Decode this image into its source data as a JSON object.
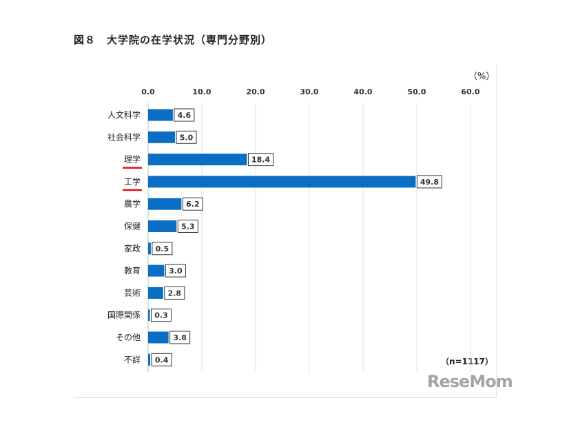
{
  "chart_data": {
    "type": "bar",
    "orientation": "horizontal",
    "title": "図８　大学院の在学状況（専門分野別）",
    "unit_label": "（%）",
    "note": "（n=1117）",
    "categories": [
      "人文科学",
      "社会科学",
      "理学",
      "工学",
      "農学",
      "保健",
      "家政",
      "教育",
      "芸術",
      "国際関係",
      "その他",
      "不詳"
    ],
    "values": [
      4.6,
      5.0,
      18.4,
      49.8,
      6.2,
      5.3,
      0.5,
      3.0,
      2.8,
      0.3,
      3.8,
      0.4
    ],
    "value_labels": [
      "4.6",
      "5.0",
      "18.4",
      "49.8",
      "6.2",
      "5.3",
      "0.5",
      "3.0",
      "2.8",
      "0.3",
      "3.8",
      "0.4"
    ],
    "highlighted_categories": [
      "理学",
      "工学"
    ],
    "xlim": [
      0,
      60
    ],
    "xticks": [
      "0.0",
      "10.0",
      "20.0",
      "30.0",
      "40.0",
      "50.0",
      "60.0"
    ],
    "xtick_values": [
      0,
      10,
      20,
      30,
      40,
      50,
      60
    ],
    "axis_position": "top",
    "grid": true,
    "bar_color": "#0a6ec4",
    "highlight_color": "#e01010"
  },
  "watermark": "ReseMom"
}
